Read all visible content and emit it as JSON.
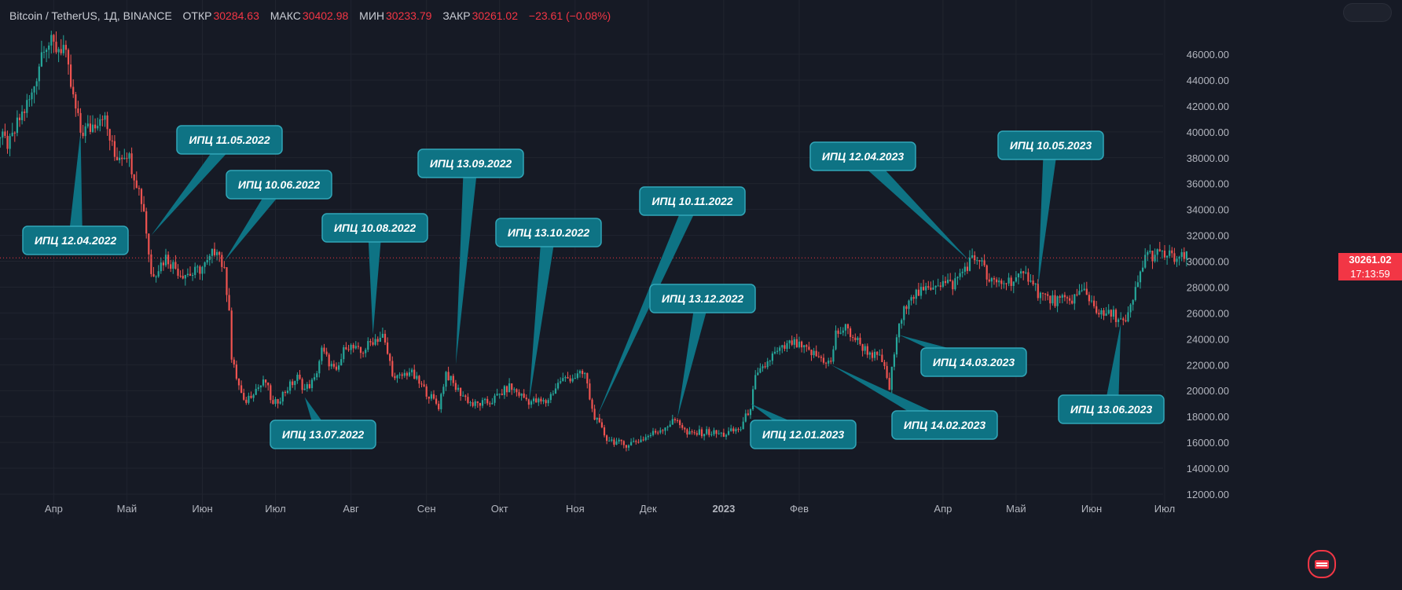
{
  "legend": {
    "symbol": "Bitcoin / TetherUS, 1Д, BINANCE",
    "open_label": "ОТКР",
    "open": "30284.63",
    "high_label": "МАКС",
    "high": "30402.98",
    "low_label": "МИН",
    "low": "30233.79",
    "close_label": "ЗАКР",
    "close": "30261.02",
    "change": "−23.61 (−0.08%)"
  },
  "price_tag": {
    "price": "30261.02",
    "countdown": "17:13:59"
  },
  "colors": {
    "background": "#161a25",
    "up": "#26a69a",
    "down": "#ef5350",
    "callout": "#0e7384",
    "callout_border": "#31a6b8",
    "price_line": "#f23645"
  },
  "chart_data": {
    "type": "candlestick",
    "y_axis": {
      "ticks": [
        12000,
        14000,
        16000,
        18000,
        20000,
        22000,
        24000,
        26000,
        28000,
        30000,
        32000,
        34000,
        36000,
        38000,
        40000,
        42000,
        44000,
        46000
      ],
      "labels": [
        "12000.00",
        "14000.00",
        "16000.00",
        "18000.00",
        "20000.00",
        "22000.00",
        "24000.00",
        "26000.00",
        "28000.00",
        "30000.00",
        "32000.00",
        "34000.00",
        "36000.00",
        "38000.00",
        "40000.00",
        "42000.00",
        "44000.00",
        "46000.00"
      ]
    },
    "x_axis": {
      "labels": [
        "Апр",
        "Май",
        "Июн",
        "Июл",
        "Авг",
        "Сен",
        "Окт",
        "Ноя",
        "Дек",
        "2023",
        "Фев",
        "Апр",
        "Май",
        "Июн",
        "Июл"
      ]
    },
    "price_series": [
      {
        "date": "2022-03-10",
        "close": 39500
      },
      {
        "date": "2022-03-14",
        "close": 39000
      },
      {
        "date": "2022-03-18",
        "close": 41000
      },
      {
        "date": "2022-03-23",
        "close": 42800
      },
      {
        "date": "2022-03-28",
        "close": 47000
      },
      {
        "date": "2022-04-02",
        "close": 46500
      },
      {
        "date": "2022-04-05",
        "close": 46600
      },
      {
        "date": "2022-04-09",
        "close": 42500
      },
      {
        "date": "2022-04-12",
        "close": 40000
      },
      {
        "date": "2022-04-16",
        "close": 40300
      },
      {
        "date": "2022-04-21",
        "close": 41500
      },
      {
        "date": "2022-04-26",
        "close": 38100
      },
      {
        "date": "2022-05-01",
        "close": 38500
      },
      {
        "date": "2022-05-05",
        "close": 36200
      },
      {
        "date": "2022-05-08",
        "close": 34000
      },
      {
        "date": "2022-05-11",
        "close": 29000
      },
      {
        "date": "2022-05-13",
        "close": 29300
      },
      {
        "date": "2022-05-17",
        "close": 30300
      },
      {
        "date": "2022-05-23",
        "close": 29100
      },
      {
        "date": "2022-05-28",
        "close": 29000
      },
      {
        "date": "2022-06-03",
        "close": 29800
      },
      {
        "date": "2022-06-07",
        "close": 31200
      },
      {
        "date": "2022-06-10",
        "close": 29100
      },
      {
        "date": "2022-06-12",
        "close": 26500
      },
      {
        "date": "2022-06-13",
        "close": 22400
      },
      {
        "date": "2022-06-18",
        "close": 19000
      },
      {
        "date": "2022-06-22",
        "close": 20000
      },
      {
        "date": "2022-06-27",
        "close": 20700
      },
      {
        "date": "2022-06-30",
        "close": 18800
      },
      {
        "date": "2022-07-06",
        "close": 20200
      },
      {
        "date": "2022-07-10",
        "close": 21000
      },
      {
        "date": "2022-07-13",
        "close": 20100
      },
      {
        "date": "2022-07-17",
        "close": 20800
      },
      {
        "date": "2022-07-20",
        "close": 23100
      },
      {
        "date": "2022-07-26",
        "close": 21300
      },
      {
        "date": "2022-07-30",
        "close": 23600
      },
      {
        "date": "2022-08-05",
        "close": 22900
      },
      {
        "date": "2022-08-10",
        "close": 23900
      },
      {
        "date": "2022-08-14",
        "close": 24200
      },
      {
        "date": "2022-08-19",
        "close": 20800
      },
      {
        "date": "2022-08-25",
        "close": 21500
      },
      {
        "date": "2022-08-31",
        "close": 20100
      },
      {
        "date": "2022-09-06",
        "close": 18800
      },
      {
        "date": "2022-09-09",
        "close": 21400
      },
      {
        "date": "2022-09-13",
        "close": 20200
      },
      {
        "date": "2022-09-20",
        "close": 18900
      },
      {
        "date": "2022-09-27",
        "close": 19100
      },
      {
        "date": "2022-10-05",
        "close": 20300
      },
      {
        "date": "2022-10-13",
        "close": 19200
      },
      {
        "date": "2022-10-20",
        "close": 19100
      },
      {
        "date": "2022-10-26",
        "close": 20800
      },
      {
        "date": "2022-11-05",
        "close": 21300
      },
      {
        "date": "2022-11-08",
        "close": 18500
      },
      {
        "date": "2022-11-10",
        "close": 17600
      },
      {
        "date": "2022-11-14",
        "close": 16300
      },
      {
        "date": "2022-11-21",
        "close": 15800
      },
      {
        "date": "2022-11-28",
        "close": 16200
      },
      {
        "date": "2022-12-05",
        "close": 16900
      },
      {
        "date": "2022-12-13",
        "close": 17800
      },
      {
        "date": "2022-12-17",
        "close": 16600
      },
      {
        "date": "2022-12-25",
        "close": 16800
      },
      {
        "date": "2023-01-01",
        "close": 16600
      },
      {
        "date": "2023-01-08",
        "close": 17100
      },
      {
        "date": "2023-01-12",
        "close": 18800
      },
      {
        "date": "2023-01-14",
        "close": 20900
      },
      {
        "date": "2023-01-21",
        "close": 22700
      },
      {
        "date": "2023-01-29",
        "close": 23700
      },
      {
        "date": "2023-02-06",
        "close": 22900
      },
      {
        "date": "2023-02-14",
        "close": 22100
      },
      {
        "date": "2023-02-16",
        "close": 24400
      },
      {
        "date": "2023-02-20",
        "close": 24800
      },
      {
        "date": "2023-02-28",
        "close": 23200
      },
      {
        "date": "2023-03-07",
        "close": 22300
      },
      {
        "date": "2023-03-10",
        "close": 20200
      },
      {
        "date": "2023-03-13",
        "close": 24200
      },
      {
        "date": "2023-03-18",
        "close": 27400
      },
      {
        "date": "2023-03-24",
        "close": 27600
      },
      {
        "date": "2023-03-29",
        "close": 28400
      },
      {
        "date": "2023-04-05",
        "close": 28200
      },
      {
        "date": "2023-04-12",
        "close": 30000
      },
      {
        "date": "2023-04-16",
        "close": 30300
      },
      {
        "date": "2023-04-20",
        "close": 28300
      },
      {
        "date": "2023-04-26",
        "close": 28400
      },
      {
        "date": "2023-05-02",
        "close": 28700
      },
      {
        "date": "2023-05-07",
        "close": 28900
      },
      {
        "date": "2023-05-10",
        "close": 27600
      },
      {
        "date": "2023-05-15",
        "close": 27000
      },
      {
        "date": "2023-05-22",
        "close": 26900
      },
      {
        "date": "2023-05-29",
        "close": 27700
      },
      {
        "date": "2023-06-05",
        "close": 25800
      },
      {
        "date": "2023-06-10",
        "close": 25900
      },
      {
        "date": "2023-06-15",
        "close": 25100
      },
      {
        "date": "2023-06-20",
        "close": 28300
      },
      {
        "date": "2023-06-23",
        "close": 30500
      },
      {
        "date": "2023-07-01",
        "close": 30500
      },
      {
        "date": "2023-07-06",
        "close": 30200
      },
      {
        "date": "2023-07-10",
        "close": 30261
      }
    ],
    "annotations": [
      {
        "label": "ИПЦ 12.04.2022",
        "date": "2022-04-12",
        "price": 40000
      },
      {
        "label": "ИПЦ 11.05.2022",
        "date": "2022-05-11",
        "price": 32000
      },
      {
        "label": "ИПЦ 10.06.2022",
        "date": "2022-06-10",
        "price": 30000
      },
      {
        "label": "ИПЦ 13.07.2022",
        "date": "2022-07-13",
        "price": 19500
      },
      {
        "label": "ИПЦ 10.08.2022",
        "date": "2022-08-10",
        "price": 24300
      },
      {
        "label": "ИПЦ 13.09.2022",
        "date": "2022-09-13",
        "price": 22000
      },
      {
        "label": "ИПЦ 13.10.2022",
        "date": "2022-10-13",
        "price": 19000
      },
      {
        "label": "ИПЦ 10.11.2022",
        "date": "2022-11-10",
        "price": 18000
      },
      {
        "label": "ИПЦ 13.12.2022",
        "date": "2022-12-13",
        "price": 17900
      },
      {
        "label": "ИПЦ 12.01.2023",
        "date": "2023-01-12",
        "price": 19000
      },
      {
        "label": "ИПЦ 14.02.2023",
        "date": "2023-02-14",
        "price": 22000
      },
      {
        "label": "ИПЦ 14.03.2023",
        "date": "2023-03-14",
        "price": 24300
      },
      {
        "label": "ИПЦ 12.04.2023",
        "date": "2023-04-12",
        "price": 30000
      },
      {
        "label": "ИПЦ 10.05.2023",
        "date": "2023-05-10",
        "price": 28000
      },
      {
        "label": "ИПЦ 13.06.2023",
        "date": "2023-06-13",
        "price": 25200
      }
    ],
    "last_price": 30261.02
  }
}
